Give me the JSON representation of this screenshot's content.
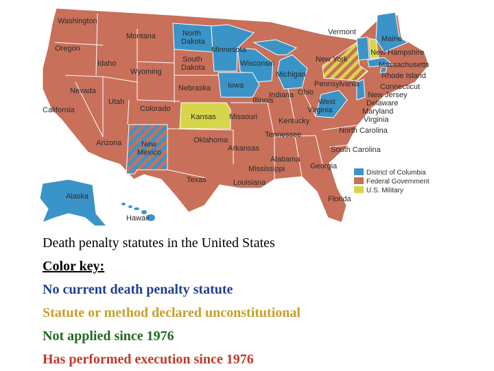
{
  "colors": {
    "execution": "#c8705a",
    "no_penalty": "#3a94c8",
    "unconstitutional": "#d6d64a",
    "border": "#ffffff",
    "caption_none": "#1f3f8f",
    "caption_unconst": "#c8a02a",
    "caption_notapplied": "#1f6b1f",
    "caption_performed": "#c0392b"
  },
  "states": [
    {
      "name": "Washington",
      "status": "execution"
    },
    {
      "name": "Montana",
      "status": "execution"
    },
    {
      "name": "North Dakota",
      "status": "no_penalty"
    },
    {
      "name": "Minnesota",
      "status": "no_penalty"
    },
    {
      "name": "Oregon",
      "status": "execution"
    },
    {
      "name": "Idaho",
      "status": "execution"
    },
    {
      "name": "Wyoming",
      "status": "execution"
    },
    {
      "name": "South Dakota",
      "status": "execution"
    },
    {
      "name": "Wisconsin",
      "status": "no_penalty"
    },
    {
      "name": "Michigan",
      "status": "no_penalty"
    },
    {
      "name": "Iowa",
      "status": "no_penalty"
    },
    {
      "name": "Nebraska",
      "status": "execution"
    },
    {
      "name": "Nevada",
      "status": "execution"
    },
    {
      "name": "Utah",
      "status": "execution"
    },
    {
      "name": "Colorado",
      "status": "execution"
    },
    {
      "name": "Kansas",
      "status": "unconstitutional"
    },
    {
      "name": "California",
      "status": "execution"
    },
    {
      "name": "Arizona",
      "status": "execution"
    },
    {
      "name": "New Mexico",
      "status": "striped-blue"
    },
    {
      "name": "Oklahoma",
      "status": "execution"
    },
    {
      "name": "Texas",
      "status": "execution"
    },
    {
      "name": "Missouri",
      "status": "execution"
    },
    {
      "name": "Illinois",
      "status": "execution"
    },
    {
      "name": "Indiana",
      "status": "execution"
    },
    {
      "name": "Ohio",
      "status": "execution"
    },
    {
      "name": "Kentucky",
      "status": "execution"
    },
    {
      "name": "Tennessee",
      "status": "execution"
    },
    {
      "name": "Arkansas",
      "status": "execution"
    },
    {
      "name": "Louisiana",
      "status": "execution"
    },
    {
      "name": "Mississippi",
      "status": "execution"
    },
    {
      "name": "Alabama",
      "status": "execution"
    },
    {
      "name": "Georgia",
      "status": "execution"
    },
    {
      "name": "Florida",
      "status": "execution"
    },
    {
      "name": "South Carolina",
      "status": "execution"
    },
    {
      "name": "North Carolina",
      "status": "execution"
    },
    {
      "name": "Virginia",
      "status": "execution"
    },
    {
      "name": "West Virginia",
      "status": "no_penalty"
    },
    {
      "name": "Pennsylvania",
      "status": "execution"
    },
    {
      "name": "New York",
      "status": "striped-yellow"
    },
    {
      "name": "Vermont",
      "status": "no_penalty"
    },
    {
      "name": "Maine",
      "status": "no_penalty"
    },
    {
      "name": "New Hampshire",
      "status": "unconstitutional"
    },
    {
      "name": "Massachusetts",
      "status": "no_penalty"
    },
    {
      "name": "Rhode Island",
      "status": "no_penalty"
    },
    {
      "name": "Connecticut",
      "status": "execution"
    },
    {
      "name": "New Jersey",
      "status": "no_penalty"
    },
    {
      "name": "Delaware",
      "status": "execution"
    },
    {
      "name": "Maryland",
      "status": "execution"
    },
    {
      "name": "Alaska",
      "status": "no_penalty"
    },
    {
      "name": "Hawaii",
      "status": "no_penalty"
    }
  ],
  "map_labels": {
    "washington": "Washington",
    "montana": "Montana",
    "north_dakota_1": "North",
    "north_dakota_2": "Dakota",
    "minnesota": "Minnesota",
    "oregon": "Oregon",
    "idaho": "Idaho",
    "wyoming": "Wyoming",
    "south_dakota_1": "South",
    "south_dakota_2": "Dakota",
    "wisconsin": "Wisconsin",
    "michigan": "Michigan",
    "iowa": "Iowa",
    "nebraska": "Nebraska",
    "nevada": "Nevada",
    "utah": "Utah",
    "colorado": "Colorado",
    "kansas": "Kansas",
    "california": "California",
    "arizona": "Arizona",
    "new_mexico_1": "New",
    "new_mexico_2": "Mexico",
    "oklahoma": "Oklahoma",
    "texas": "Texas",
    "missouri": "Missouri",
    "illinois": "Illinois",
    "indiana": "Indiana",
    "ohio": "Ohio",
    "kentucky": "Kentucky",
    "tennessee": "Tennessee",
    "arkansas": "Arkansas",
    "louisiana": "Louisiana",
    "mississippi": "Mississippi",
    "alabama": "Alabama",
    "georgia": "Georgia",
    "florida": "Florida",
    "south_carolina": "South Carolina",
    "north_carolina": "North Carolina",
    "virginia": "Virginia",
    "west_virginia_1": "West",
    "west_virginia_2": "Virginia",
    "pennsylvania": "Pennsylvania",
    "new_york": "New York",
    "vermont": "Vermont",
    "maine": "Maine",
    "new_hampshire": "New Hampshire",
    "massachusetts": "Massachusetts",
    "rhode_island": "Rhode Island",
    "connecticut": "Connecticut",
    "new_jersey": "New Jersey",
    "delaware": "Delaware",
    "maryland": "Maryland",
    "alaska": "Alaska",
    "hawaii": "Hawaii"
  },
  "map_legend": [
    {
      "label": "District of Columbia",
      "status": "no_penalty"
    },
    {
      "label": "Federal Government",
      "status": "execution"
    },
    {
      "label": "U.S. Military",
      "status": "unconstitutional"
    }
  ],
  "caption": {
    "title": "Death penalty statutes in the United States",
    "key_heading": "Color key: ",
    "no_penalty": "No current death penalty statute",
    "unconstitutional": "Statute or method declared unconstitutional",
    "not_applied": "Not applied since 1976",
    "performed": "Has performed execution since 1976"
  }
}
